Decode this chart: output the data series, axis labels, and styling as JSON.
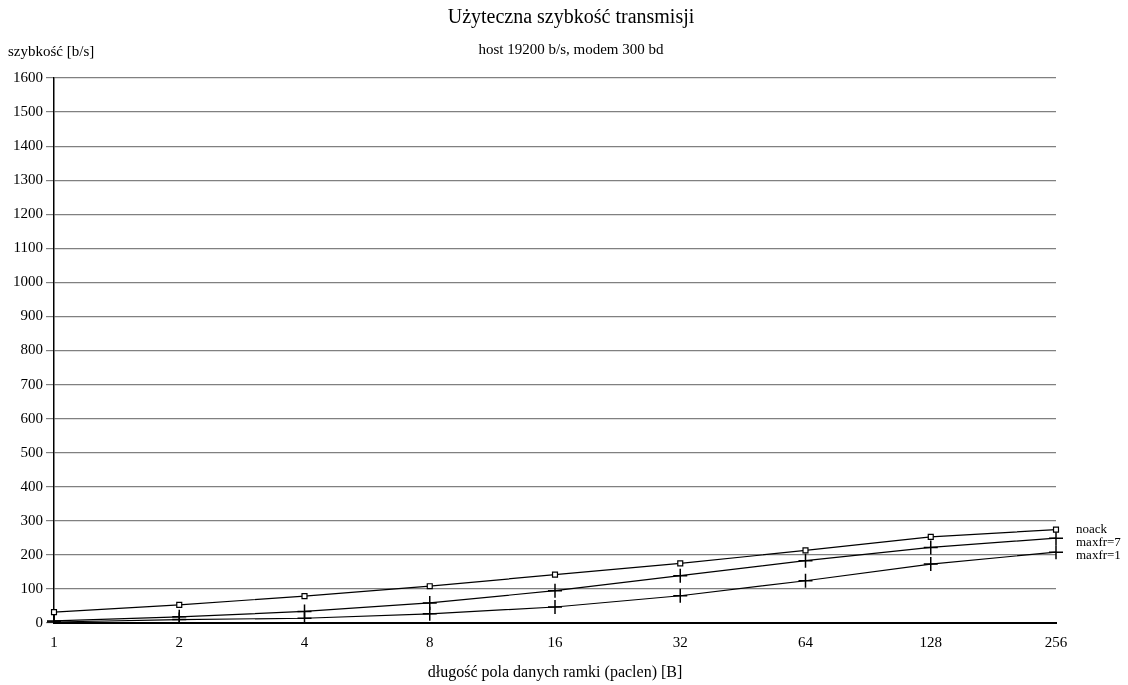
{
  "chart_data": {
    "type": "line",
    "title": "Użyteczna szybkość transmisji",
    "subtitle": "host 19200 b/s, modem 300 bd",
    "ylabel": "szybkość [b/s]",
    "xlabel": "długość pola danych ramki (paclen) [B]",
    "categories": [
      "1",
      "2",
      "4",
      "8",
      "16",
      "32",
      "64",
      "128",
      "256"
    ],
    "series": [
      {
        "name": "noack",
        "color": "#000000",
        "marker": "square",
        "values": [
          32,
          53,
          79,
          108,
          142,
          175,
          213,
          253,
          274
        ]
      },
      {
        "name": "maxfr=7",
        "color": "#000000",
        "marker": "cross",
        "values": [
          6,
          18,
          34,
          59,
          95,
          139,
          183,
          222,
          249
        ]
      },
      {
        "name": "maxfr=1",
        "color": "#000000",
        "marker": "cross",
        "values": [
          3,
          10,
          14,
          27,
          47,
          80,
          124,
          173,
          208
        ]
      }
    ],
    "ylim": [
      0,
      1600
    ],
    "yticks": [
      0,
      100,
      200,
      300,
      400,
      500,
      600,
      700,
      800,
      900,
      1000,
      1100,
      1200,
      1300,
      1400,
      1500,
      1600
    ],
    "grid": "y",
    "legend": "right",
    "line_style": "solid"
  }
}
